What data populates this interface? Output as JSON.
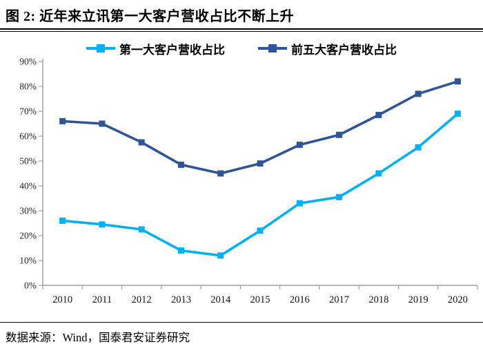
{
  "header": {
    "title": "图 2:  近年来立讯第一大客户营收占比不断上升"
  },
  "footer": {
    "source": "数据来源：Wind，国泰君安证券研究"
  },
  "colors": {
    "series1": "#00B0F0",
    "series2": "#2F5597",
    "axis": "#A0A0A0",
    "title_text": "#000000"
  },
  "chart_data": {
    "type": "line",
    "title": "近年来立讯第一大客户营收占比不断上升",
    "categories": [
      "2010",
      "2011",
      "2012",
      "2013",
      "2014",
      "2015",
      "2016",
      "2017",
      "2018",
      "2019",
      "2020"
    ],
    "series": [
      {
        "name": "第一大客户营收占比",
        "color": "#00B0F0",
        "values": [
          26,
          24.5,
          22.5,
          14,
          12,
          22,
          33,
          35.5,
          45,
          55.5,
          69
        ]
      },
      {
        "name": "前五大客户营收占比",
        "color": "#2F5597",
        "values": [
          66,
          65,
          57.5,
          48.5,
          45,
          49,
          56.5,
          60.5,
          68.5,
          77,
          82
        ]
      }
    ],
    "ylim": [
      0,
      90
    ],
    "ytick_step": 10,
    "ytick_labels": [
      "0%",
      "10%",
      "20%",
      "30%",
      "40%",
      "50%",
      "60%",
      "70%",
      "80%",
      "90%"
    ],
    "xlabel": "",
    "ylabel": "",
    "grid": false,
    "legend_position": "top",
    "marker": "square"
  }
}
